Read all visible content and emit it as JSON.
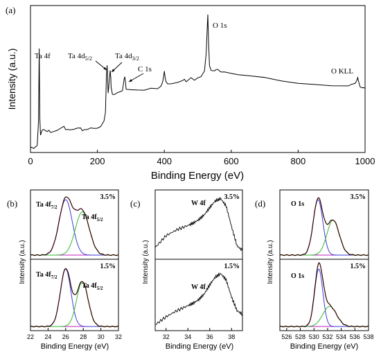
{
  "colors": {
    "spectrum": "#000000",
    "fit_red": "#d22222",
    "fit_green": "#2fb82f",
    "fit_blue": "#3a3ad6",
    "baseline": "#c020c0"
  },
  "chart_data": [
    {
      "type": "line",
      "panel": "(a)",
      "xlabel": "Binding Energy (eV)",
      "ylabel": "Intensity (a.u.)",
      "xlim": [
        0,
        1000
      ],
      "xticks": [
        "0",
        "200",
        "400",
        "600",
        "800",
        "1000"
      ],
      "annotations": [
        {
          "text": "Ta 4f",
          "x": 26
        },
        {
          "text": "Ta 4d5/2",
          "x": 230
        },
        {
          "text": "Ta 4d3/2",
          "x": 241
        },
        {
          "text": "C 1s",
          "x": 284
        },
        {
          "text": "O 1s",
          "x": 530
        },
        {
          "text": "O KLL",
          "x": 978
        }
      ],
      "series": [
        {
          "x": [
            0,
            10,
            20,
            24,
            26,
            28,
            30,
            35,
            40,
            45,
            50,
            55,
            60,
            70,
            80,
            90,
            100,
            105,
            110,
            120,
            130,
            140,
            150,
            155,
            160,
            170,
            180,
            190,
            200,
            210,
            220,
            224,
            227,
            229,
            230,
            232,
            234,
            236,
            238,
            240,
            241,
            243,
            245,
            250,
            260,
            270,
            275,
            280,
            282,
            284,
            286,
            290,
            300,
            320,
            340,
            360,
            380,
            390,
            395,
            398,
            400,
            402,
            405,
            410,
            420,
            440,
            455,
            460,
            465,
            470,
            480,
            490,
            500,
            510,
            520,
            525,
            528,
            530,
            532,
            535,
            540,
            550,
            555,
            560,
            565,
            570,
            580,
            600,
            620,
            650,
            700,
            750,
            800,
            850,
            900,
            950,
            960,
            970,
            975,
            978,
            980,
            985,
            990,
            995,
            1000
          ],
          "y": [
            0.02,
            0.01,
            0.03,
            0.2,
            0.72,
            0.22,
            0.1,
            0.14,
            0.15,
            0.14,
            0.13,
            0.14,
            0.13,
            0.13,
            0.14,
            0.15,
            0.16,
            0.14,
            0.14,
            0.14,
            0.14,
            0.15,
            0.15,
            0.14,
            0.15,
            0.15,
            0.16,
            0.16,
            0.16,
            0.17,
            0.2,
            0.26,
            0.52,
            0.6,
            0.55,
            0.4,
            0.44,
            0.5,
            0.57,
            0.52,
            0.45,
            0.42,
            0.4,
            0.4,
            0.41,
            0.41,
            0.42,
            0.5,
            0.52,
            0.48,
            0.43,
            0.43,
            0.43,
            0.43,
            0.43,
            0.44,
            0.44,
            0.46,
            0.49,
            0.53,
            0.56,
            0.52,
            0.48,
            0.47,
            0.47,
            0.48,
            0.49,
            0.51,
            0.49,
            0.5,
            0.52,
            0.5,
            0.52,
            0.53,
            0.57,
            0.68,
            0.85,
            0.96,
            0.78,
            0.6,
            0.56,
            0.56,
            0.58,
            0.58,
            0.57,
            0.56,
            0.56,
            0.55,
            0.54,
            0.53,
            0.51,
            0.49,
            0.47,
            0.46,
            0.45,
            0.45,
            0.46,
            0.48,
            0.5,
            0.52,
            0.5,
            0.45,
            0.45,
            0.45,
            0.44
          ]
        }
      ]
    },
    {
      "type": "line",
      "panel": "(b)",
      "xlabel": "Binding Energy (eV)",
      "ylabel": "Intensity (a.u.)",
      "xlim": [
        22,
        32
      ],
      "xticks": [
        "22",
        "24",
        "26",
        "28",
        "30",
        "32"
      ],
      "subpanels": [
        {
          "label": "3.5%",
          "peak1": "Ta 4f7/2",
          "peak2": "Ta 4f5/2",
          "components": [
            {
              "center": 26.0,
              "height": 1.0,
              "width": 0.75
            },
            {
              "center": 27.9,
              "height": 0.78,
              "width": 0.8
            }
          ]
        },
        {
          "label": "1.5%",
          "peak1": "Ta 4f7/2",
          "peak2": "Ta 4f5/2",
          "components": [
            {
              "center": 26.0,
              "height": 1.0,
              "width": 0.6
            },
            {
              "center": 27.9,
              "height": 0.78,
              "width": 0.65
            }
          ]
        }
      ]
    },
    {
      "type": "line",
      "panel": "(c)",
      "xlabel": "Binding Energy (eV)",
      "ylabel": "Intensity (a.u.)",
      "xlim": [
        31,
        39
      ],
      "xticks": [
        "32",
        "34",
        "36",
        "38"
      ],
      "subpanels": [
        {
          "label": "3.5%",
          "peak": "W 4f",
          "x": [
            31,
            32,
            33,
            34,
            34.5,
            35,
            35.5,
            36,
            36.5,
            37,
            37.5,
            38,
            38.5,
            39
          ],
          "y": [
            0.15,
            0.35,
            0.45,
            0.52,
            0.56,
            0.62,
            0.7,
            0.82,
            0.93,
            0.97,
            0.85,
            0.5,
            0.18,
            0.1
          ]
        },
        {
          "label": "1.5%",
          "peak": "W 4f",
          "x": [
            31,
            32,
            33,
            34,
            34.5,
            35,
            35.5,
            36,
            36.5,
            37,
            37.5,
            38,
            38.5,
            39
          ],
          "y": [
            0.05,
            0.18,
            0.28,
            0.36,
            0.4,
            0.46,
            0.55,
            0.7,
            0.82,
            0.88,
            0.78,
            0.5,
            0.28,
            0.22
          ]
        }
      ]
    },
    {
      "type": "line",
      "panel": "(d)",
      "xlabel": "Binding Energy (eV)",
      "ylabel": "Intensity (a.u.)",
      "xlim": [
        525,
        538
      ],
      "xticks": [
        "526",
        "528",
        "530",
        "532",
        "534",
        "536",
        "538"
      ],
      "subpanels": [
        {
          "label": "3.5%",
          "peak": "O 1s",
          "components": [
            {
              "center": 530.6,
              "height": 1.0,
              "width": 0.7
            },
            {
              "center": 532.8,
              "height": 0.63,
              "width": 0.9
            }
          ]
        },
        {
          "label": "1.5%",
          "peak": "O 1s",
          "components": [
            {
              "center": 530.7,
              "height": 1.0,
              "width": 0.6
            },
            {
              "center": 532.3,
              "height": 0.35,
              "width": 1.0
            }
          ]
        }
      ]
    }
  ]
}
